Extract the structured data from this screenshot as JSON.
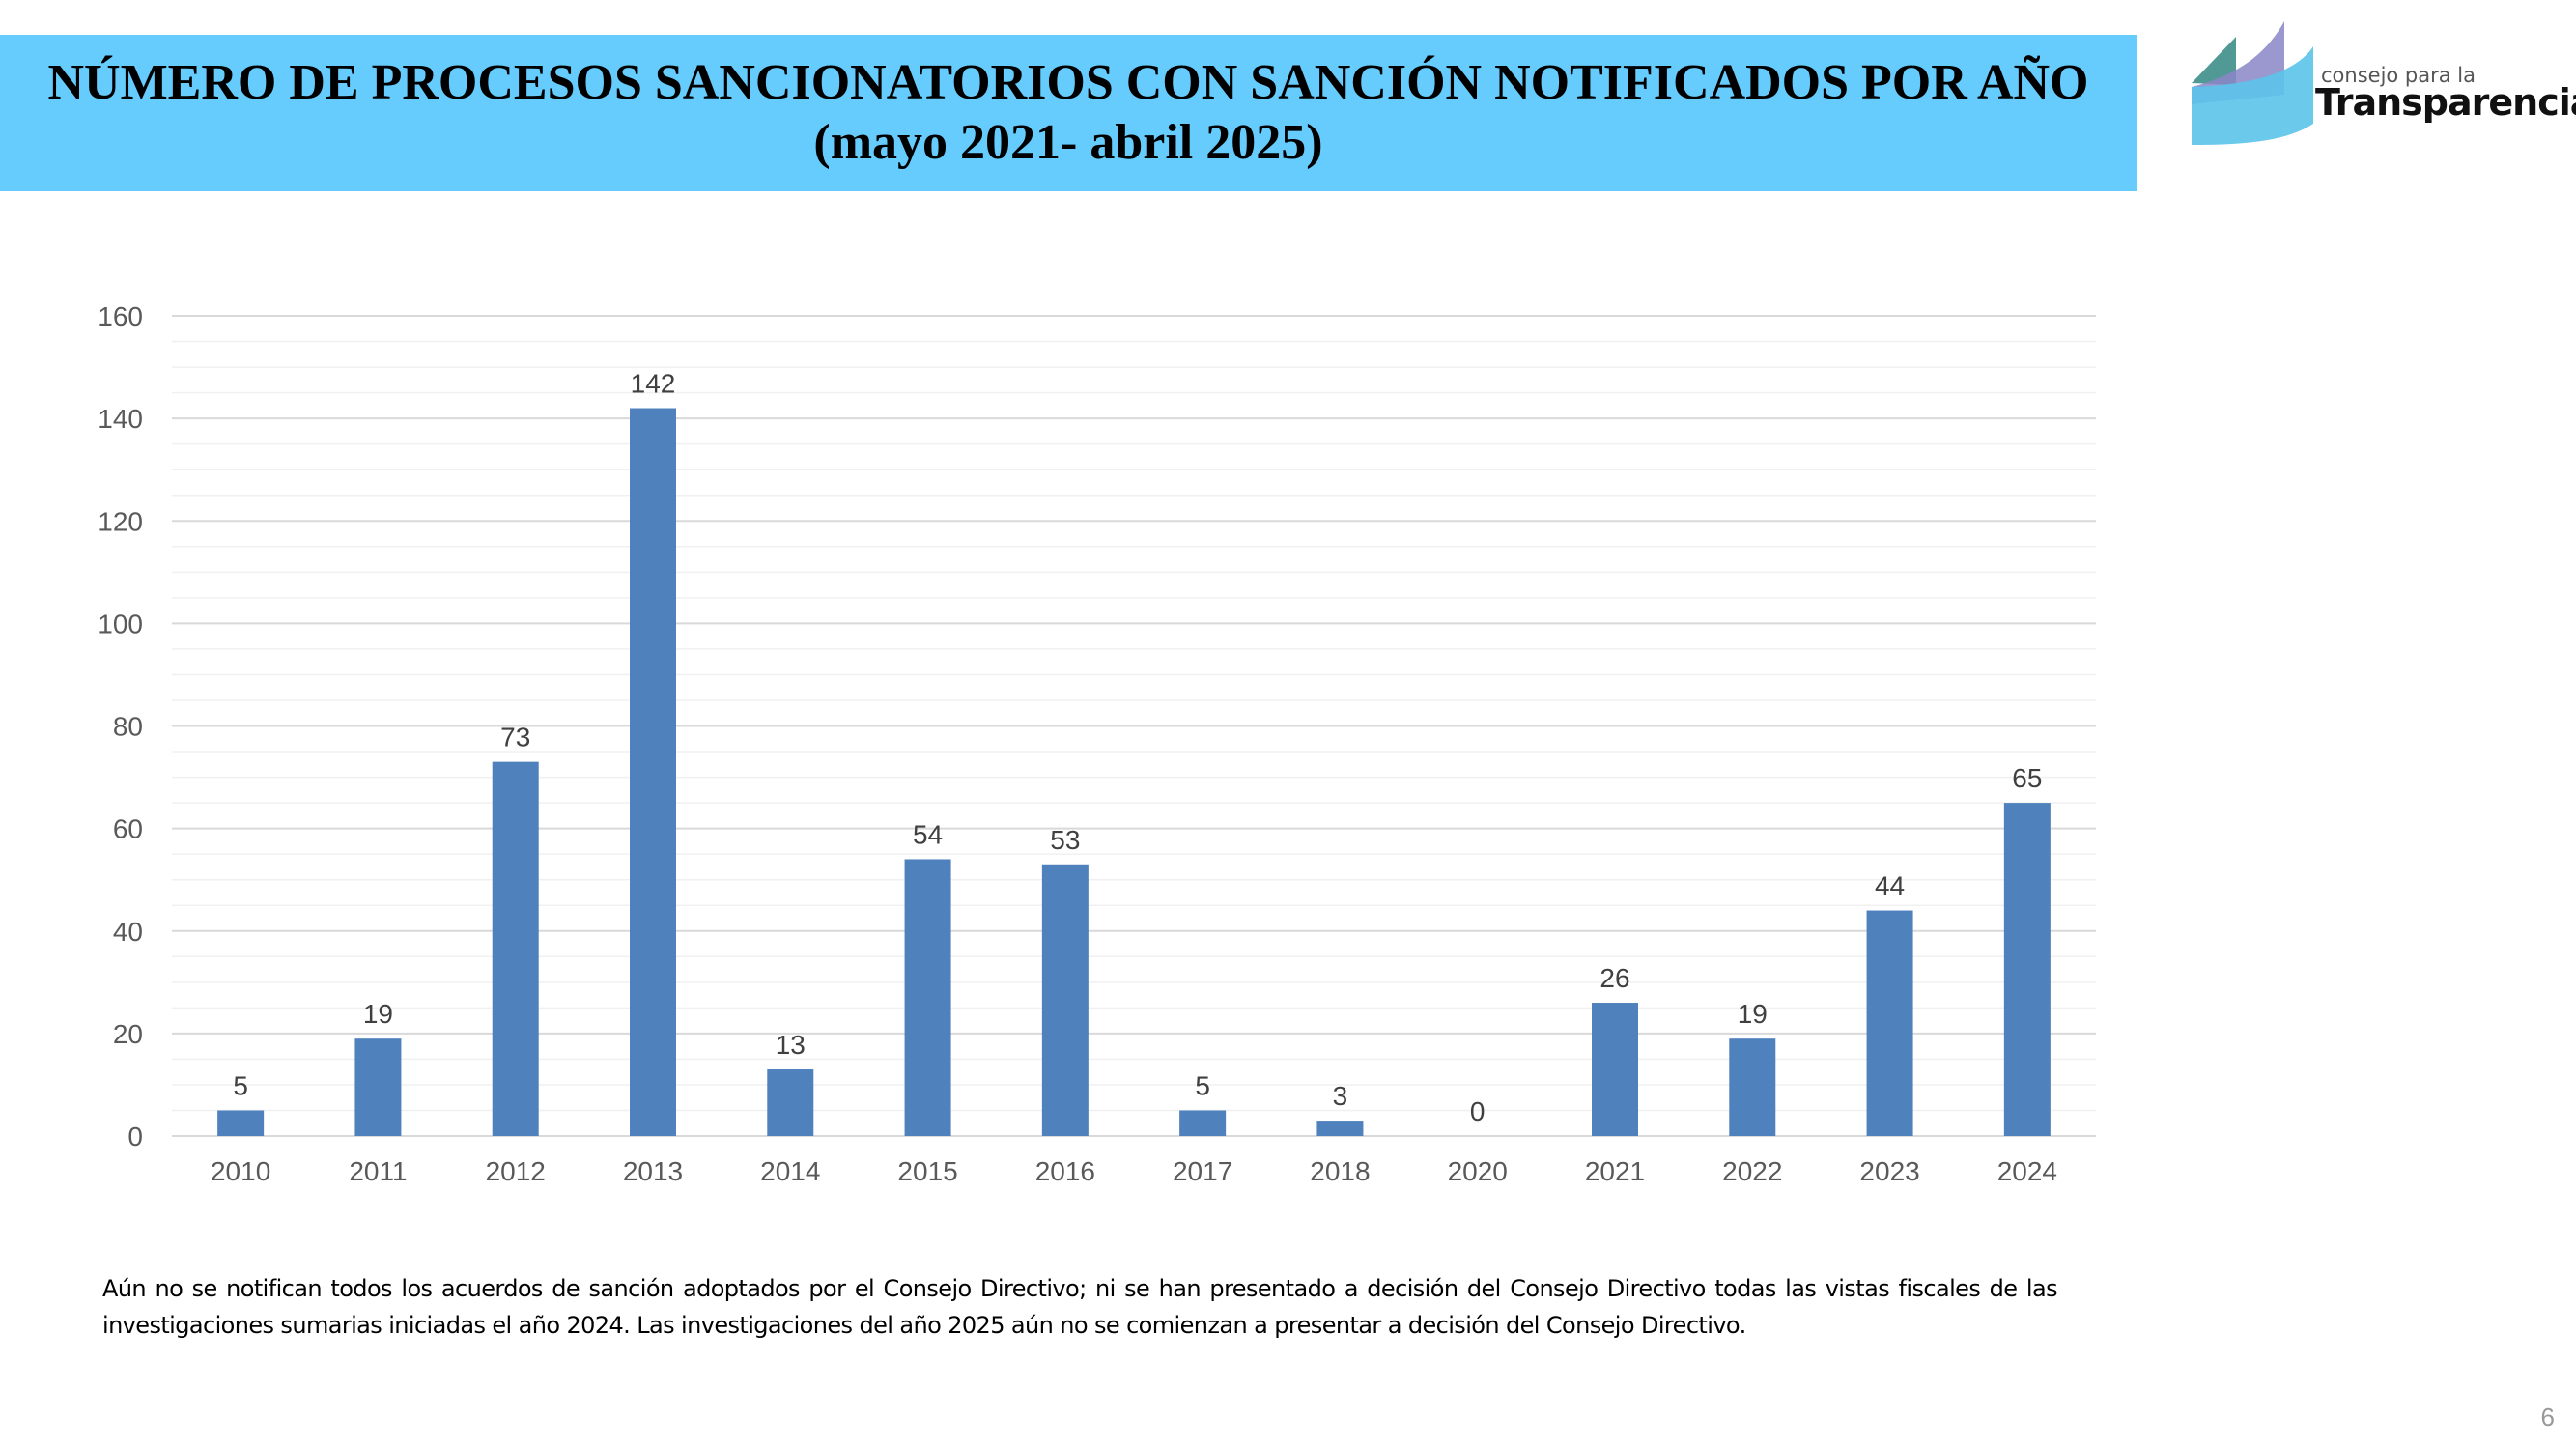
{
  "title": "NÚMERO DE PROCESOS SANCIONATORIOS CON SANCIÓN NOTIFICADOS POR AÑO (mayo 2021- abril 2025)",
  "logo": {
    "line1": "consejo para la",
    "line2": "Transparencia"
  },
  "chart_data": {
    "type": "bar",
    "title": "NÚMERO DE PROCESOS SANCIONATORIOS CON SANCIÓN NOTIFICADOS POR AÑO (mayo 2021- abril 2025)",
    "categories": [
      "2010",
      "2011",
      "2012",
      "2013",
      "2014",
      "2015",
      "2016",
      "2017",
      "2018",
      "2020",
      "2021",
      "2022",
      "2023",
      "2024"
    ],
    "values": [
      5,
      19,
      73,
      142,
      13,
      54,
      53,
      5,
      3,
      0,
      26,
      19,
      44,
      65
    ],
    "yticks": [
      0,
      20,
      40,
      60,
      80,
      100,
      120,
      140,
      160
    ],
    "ylim": [
      0,
      160
    ],
    "xlabel": "",
    "ylabel": "",
    "grid": true,
    "bar_color": "#4F81BD",
    "data_labels": true
  },
  "note": "Aún no se notifican todos los acuerdos de sanción adoptados por el Consejo Directivo; ni se han presentado a decisión del Consejo Directivo todas las vistas fiscales de las investigaciones sumarias iniciadas el año 2024. Las investigaciones del año 2025 aún no se comienzan a presentar a decisión del Consejo Directivo.",
  "page_number": "6"
}
